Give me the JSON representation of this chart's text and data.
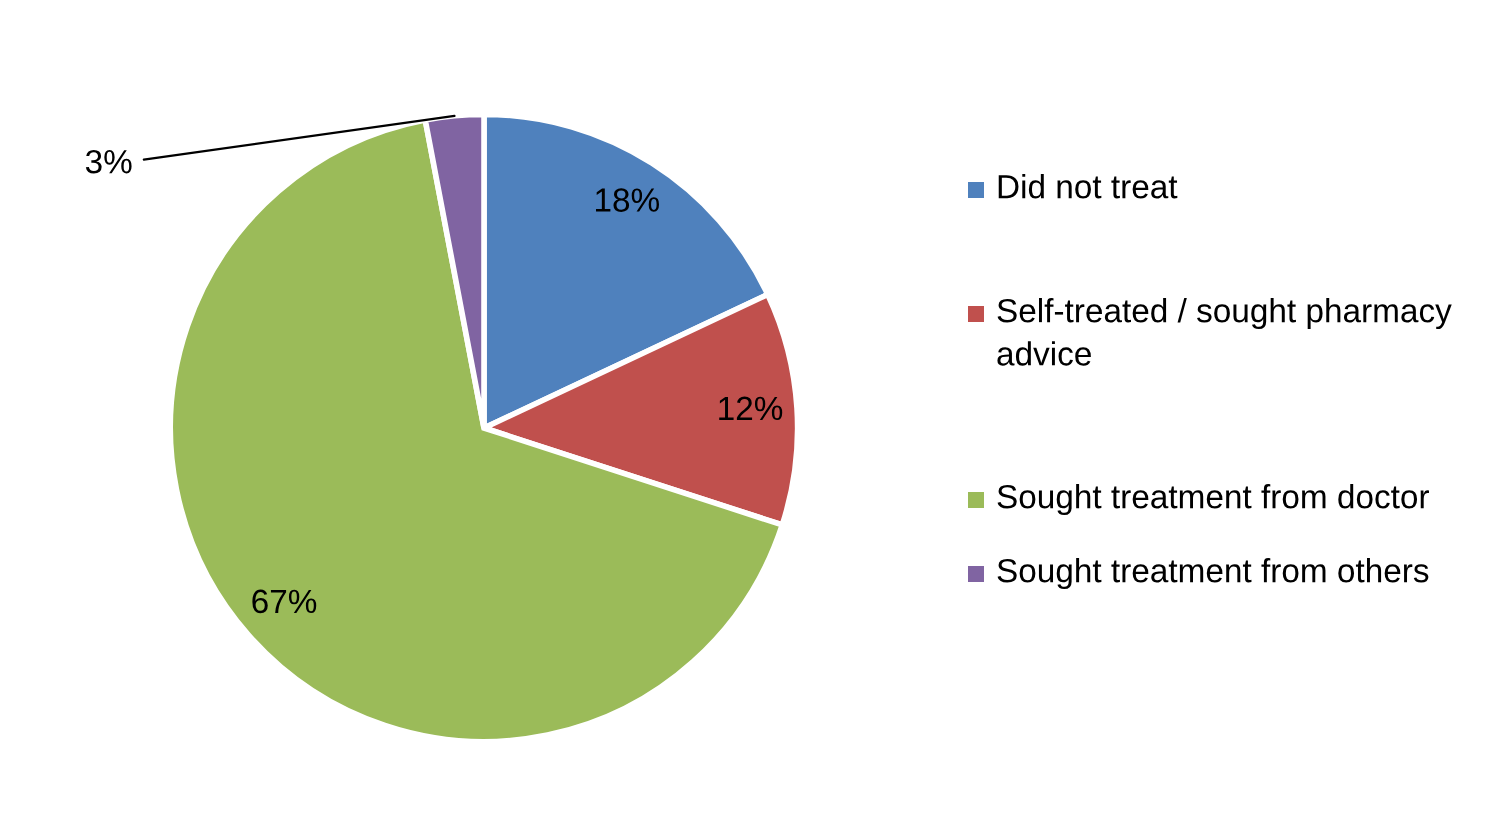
{
  "chart_data": {
    "type": "pie",
    "categories": [
      "Did not treat",
      "Self-treated / sought pharmacy advice",
      "Sought treatment from doctor",
      "Sought treatment from others"
    ],
    "values": [
      18,
      12,
      67,
      3
    ],
    "colors": [
      "#4f81bd",
      "#c0504d",
      "#9bbb59",
      "#8064a2"
    ],
    "value_labels": [
      "18%",
      "12%",
      "67%",
      "3%"
    ],
    "legend": "right"
  }
}
